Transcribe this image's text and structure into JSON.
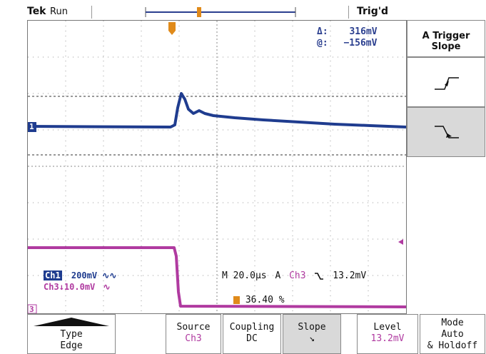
{
  "header": {
    "brand": "Tek",
    "state": "Run",
    "trigger_status": "Trig'd"
  },
  "measurement": {
    "delta_label": "Δ:",
    "delta_value": "316mV",
    "at_label": "@:",
    "at_value": "−156mV"
  },
  "channels": {
    "ch1_marker": "1",
    "ch3_marker": "3",
    "ch1_tag": "Ch1",
    "ch1_scale": "200mV",
    "ch1_coupling_icon": "∿∿",
    "ch3_tag": "Ch3",
    "ch3_scale": "10.0mV",
    "ch3_coupling_icon": "∿",
    "ch3_arrow": "↓"
  },
  "status_line": {
    "timebase": "M 20.0µs",
    "trigger_label": "A",
    "trigger_source": "Ch3",
    "trigger_slope_icon": "falling-edge-icon",
    "trigger_level": "13.2mV",
    "position_percent": "36.40 %"
  },
  "side_menu": {
    "title_line1": "A Trigger",
    "title_line2": "Slope",
    "options": [
      {
        "name": "rising-slope-option",
        "icon": "rising-edge-icon",
        "selected": false
      },
      {
        "name": "falling-slope-option",
        "icon": "falling-edge-icon",
        "selected": true
      }
    ]
  },
  "bottom_menu": {
    "type_line1": "Type",
    "type_line2": "Edge",
    "source_line1": "Source",
    "source_line2": "Ch3",
    "coupling_line1": "Coupling",
    "coupling_line2": "DC",
    "slope_line1": "Slope",
    "slope_line2": "↘",
    "level_line1": "Level",
    "level_line2": "13.2mV",
    "mode_line1": "Mode",
    "mode_line2": "Auto",
    "mode_line3": "& Holdoff"
  },
  "colors": {
    "ch1": "#1f3c8f",
    "ch3": "#b03aa0",
    "trigger_marker": "#e08a1a",
    "grid": "#8a8a8a"
  }
}
